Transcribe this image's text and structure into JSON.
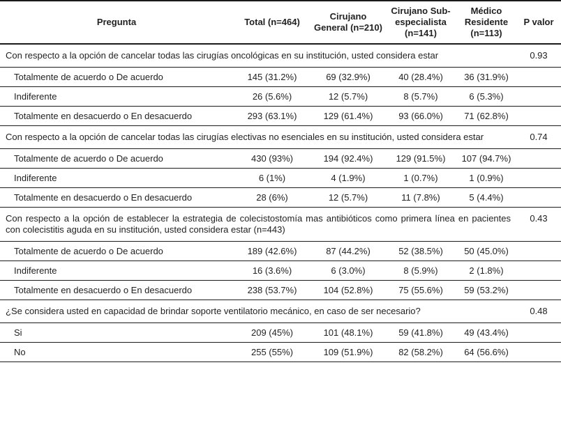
{
  "colors": {
    "text": "#222222",
    "border": "#1a1a1a",
    "background": "#ffffff"
  },
  "table": {
    "columns": [
      "Pregunta",
      "Total (n=464)",
      "Cirujano General (n=210)",
      "Cirujano Sub-especialista (n=141)",
      "Médico Residente (n=113)",
      "P valor"
    ],
    "sections": [
      {
        "question": "Con respecto a la opción de cancelar todas las cirugías oncológicas en su institución, usted considera estar",
        "p_value": "0.93",
        "rows": [
          {
            "label": "Totalmente de acuerdo o De acuerdo",
            "values": [
              "145 (31.2%)",
              "69 (32.9%)",
              "40 (28.4%)",
              "36 (31.9%)"
            ]
          },
          {
            "label": "Indiferente",
            "values": [
              "26 (5.6%)",
              "12 (5.7%)",
              "8 (5.7%)",
              "6 (5.3%)"
            ]
          },
          {
            "label": "Totalmente en desacuerdo o En desacuerdo",
            "values": [
              "293 (63.1%)",
              "129 (61.4%)",
              "93 (66.0%)",
              "71 (62.8%)"
            ]
          }
        ]
      },
      {
        "question": "Con respecto a la opción de cancelar todas las cirugías electivas no esenciales en su institución, usted considera estar",
        "p_value": "0.74",
        "rows": [
          {
            "label": "Totalmente de acuerdo o De acuerdo",
            "values": [
              "430 (93%)",
              "194 (92.4%)",
              "129 (91.5%)",
              "107 (94.7%)"
            ]
          },
          {
            "label": "Indiferente",
            "values": [
              "6 (1%)",
              "4 (1.9%)",
              "1 (0.7%)",
              "1 (0.9%)"
            ]
          },
          {
            "label": "Totalmente en desacuerdo o En desacuerdo",
            "values": [
              "28 (6%)",
              "12 (5.7%)",
              "11 (7.8%)",
              "5 (4.4%)"
            ]
          }
        ]
      },
      {
        "question": "Con respecto a la opción de establecer la estrategia de colecistostomía mas antibióticos como primera línea en pacientes con colecistitis aguda en su institución, usted considera estar (n=443)",
        "p_value": "0.43",
        "rows": [
          {
            "label": "Totalmente de acuerdo o De acuerdo",
            "values": [
              "189 (42.6%)",
              "87 (44.2%)",
              "52 (38.5%)",
              "50 (45.0%)"
            ]
          },
          {
            "label": "Indiferente",
            "values": [
              "16 (3.6%)",
              "6 (3.0%)",
              "8 (5.9%)",
              "2 (1.8%)"
            ]
          },
          {
            "label": "Totalmente en desacuerdo o En desacuerdo",
            "values": [
              "238 (53.7%)",
              "104 (52.8%)",
              "75 (55.6%)",
              "59 (53.2%)"
            ]
          }
        ]
      },
      {
        "question": "¿Se considera usted en capacidad de brindar soporte ventilatorio mecánico, en caso de ser necesario?",
        "p_value": "0.48",
        "rows": [
          {
            "label": "Si",
            "values": [
              "209 (45%)",
              "101 (48.1%)",
              "59 (41.8%)",
              "49 (43.4%)"
            ]
          },
          {
            "label": "No",
            "values": [
              "255 (55%)",
              "109 (51.9%)",
              "82 (58.2%)",
              "64 (56.6%)"
            ]
          }
        ]
      }
    ]
  }
}
